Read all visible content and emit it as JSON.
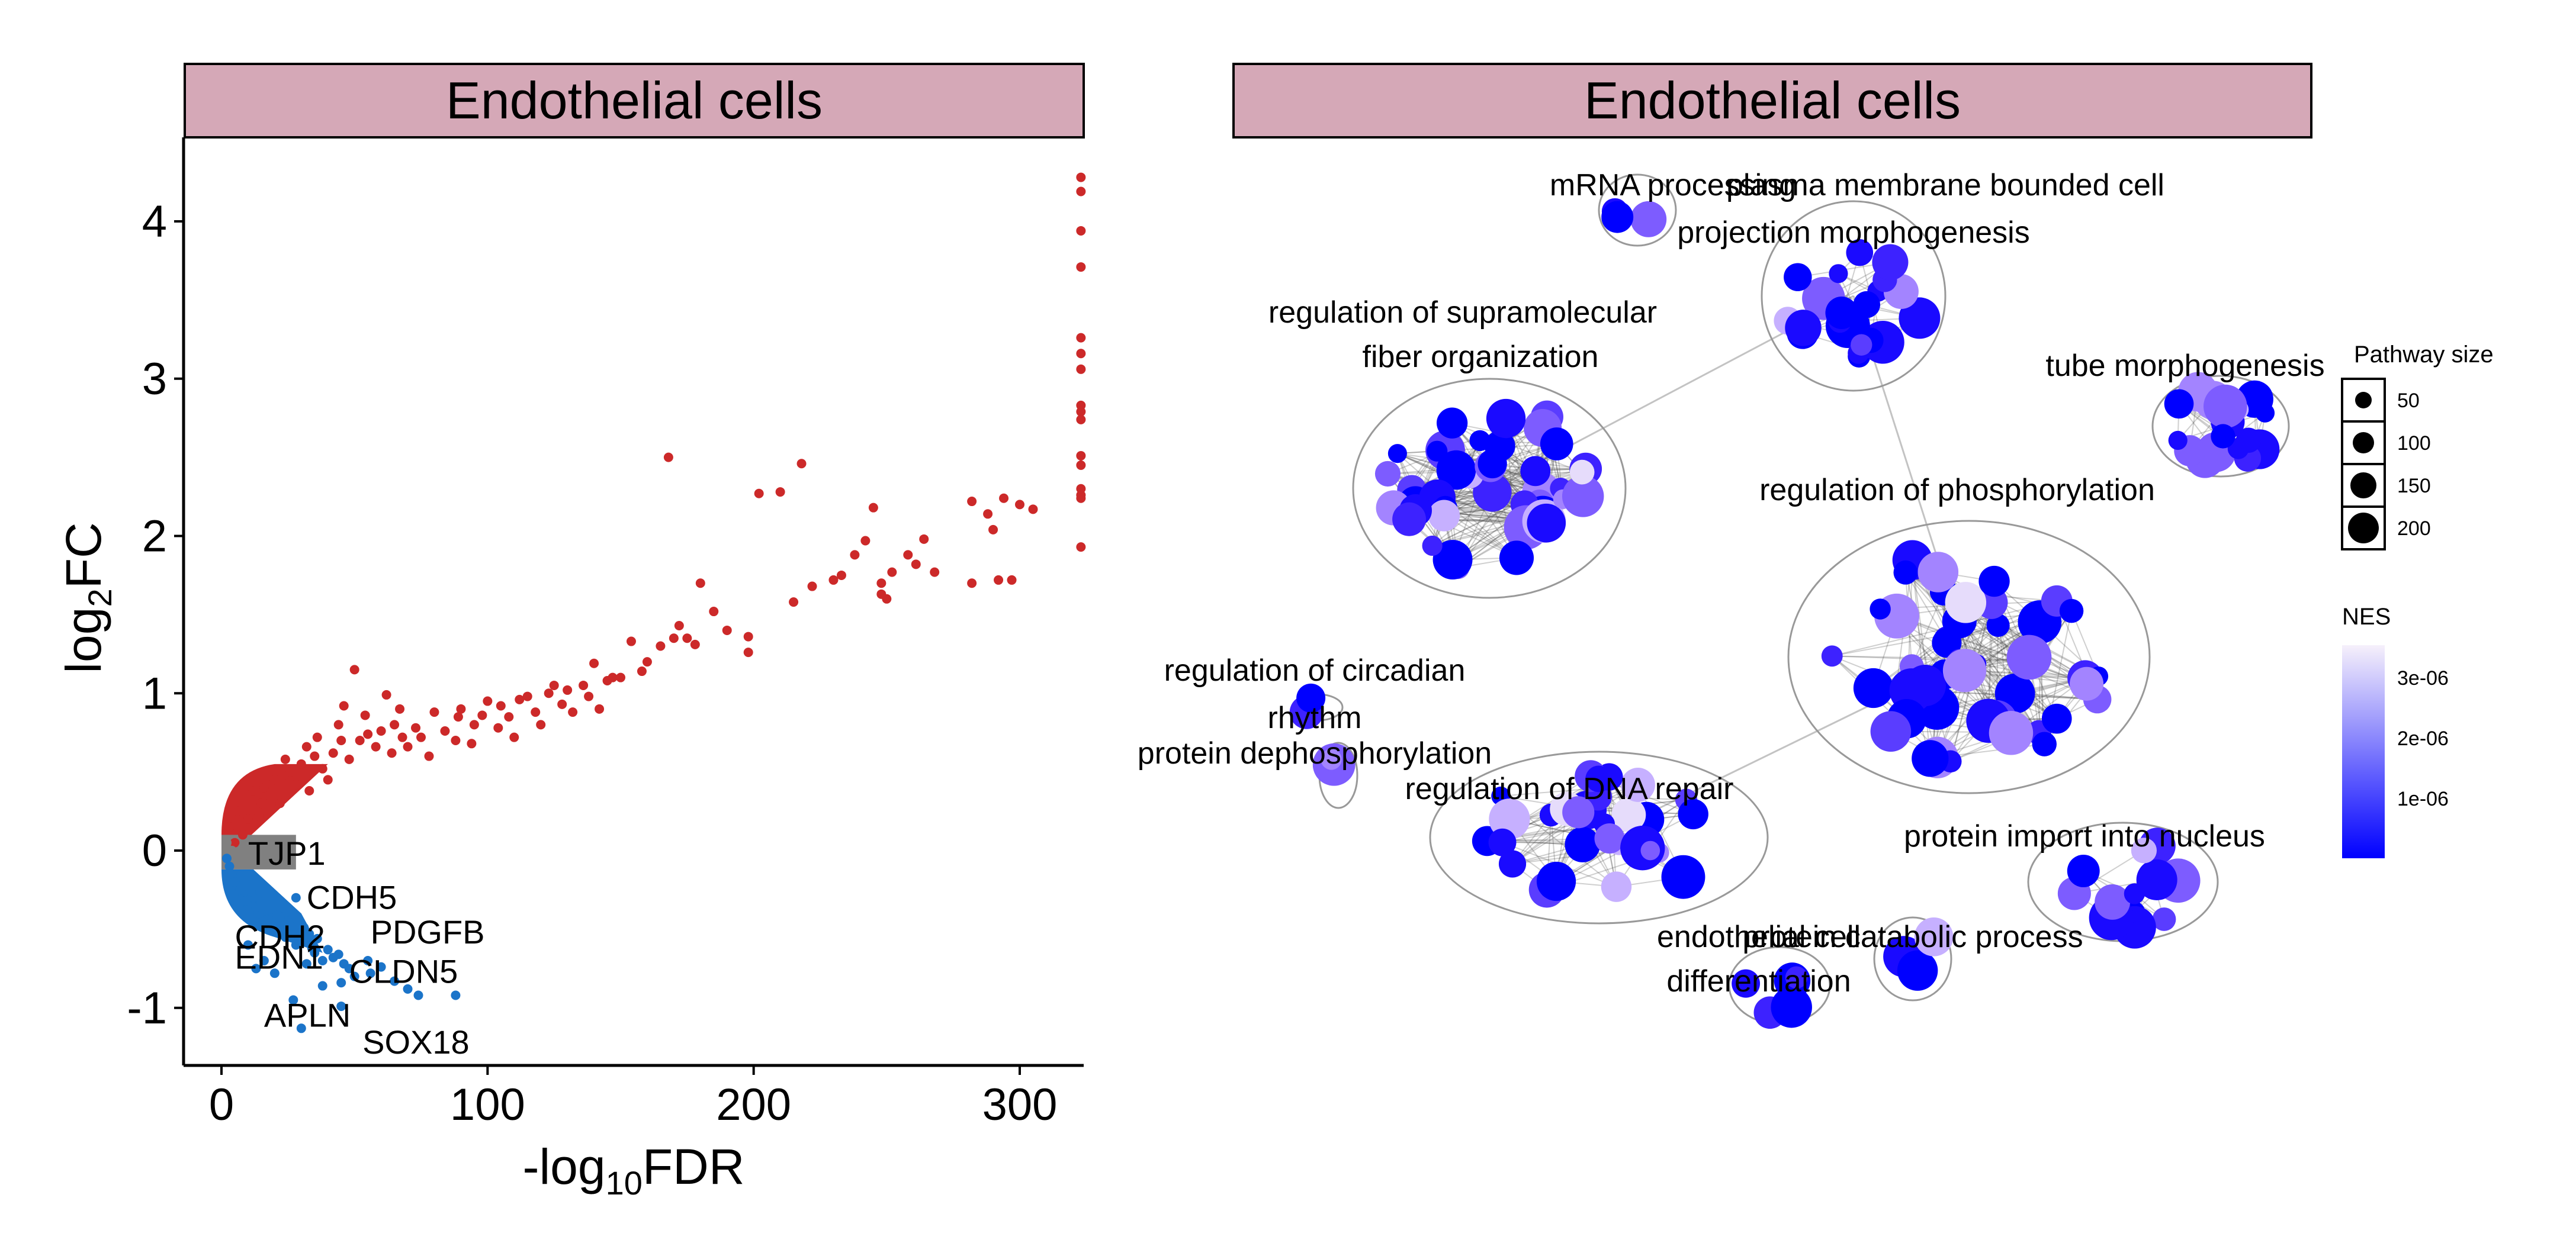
{
  "chart_data": [
    {
      "type": "scatter",
      "panel_title": "Endothelial cells",
      "xlabel": "-log10FDR",
      "xlabel_parts": {
        "prefix": "-log",
        "sub": "10",
        "suffix": "FDR"
      },
      "ylabel": "log2FC",
      "ylabel_parts": {
        "prefix": "log",
        "sub": "2",
        "suffix": "FC"
      },
      "xlim": [
        -12,
        323
      ],
      "ylim": [
        -1.37,
        4.52
      ],
      "xticks": [
        0,
        100,
        200,
        300
      ],
      "yticks": [
        -1,
        0,
        1,
        2,
        3,
        4
      ],
      "colors": {
        "up": "#cc2929",
        "down": "#1b74c9",
        "ns": "#808080"
      },
      "series": [
        {
          "name": "up",
          "points": [
            [
              323,
              4.28
            ],
            [
              323,
              4.19
            ],
            [
              323,
              3.94
            ],
            [
              323,
              3.71
            ],
            [
              323,
              3.26
            ],
            [
              323,
              3.16
            ],
            [
              323,
              3.06
            ],
            [
              323,
              2.83
            ],
            [
              323,
              2.79
            ],
            [
              323,
              2.74
            ],
            [
              323,
              2.51
            ],
            [
              323,
              2.45
            ],
            [
              323,
              2.3
            ],
            [
              323,
              2.26
            ],
            [
              323,
              2.24
            ],
            [
              323,
              1.93
            ],
            [
              168,
              2.5
            ],
            [
              218,
              2.46
            ],
            [
              210,
              2.28
            ],
            [
              202,
              2.27
            ],
            [
              282,
              2.22
            ],
            [
              300,
              2.2
            ],
            [
              294,
              2.24
            ],
            [
              288,
              2.14
            ],
            [
              305,
              2.17
            ],
            [
              245,
              2.18
            ],
            [
              290,
              2.04
            ],
            [
              242,
              1.97
            ],
            [
              238,
              1.88
            ],
            [
              264,
              1.98
            ],
            [
              292,
              1.72
            ],
            [
              282,
              1.7
            ],
            [
              297,
              1.72
            ],
            [
              230,
              1.72
            ],
            [
              261,
              1.82
            ],
            [
              258,
              1.88
            ],
            [
              248,
              1.63
            ],
            [
              250,
              1.6
            ],
            [
              268,
              1.77
            ],
            [
              248,
              1.7
            ],
            [
              252,
              1.77
            ],
            [
              180,
              1.7
            ],
            [
              215,
              1.58
            ],
            [
              233,
              1.75
            ],
            [
              222,
              1.68
            ],
            [
              178,
              1.31
            ],
            [
              185,
              1.52
            ],
            [
              198,
              1.36
            ],
            [
              198,
              1.26
            ],
            [
              172,
              1.43
            ],
            [
              170,
              1.35
            ],
            [
              165,
              1.3
            ],
            [
              154,
              1.33
            ],
            [
              140,
              1.19
            ],
            [
              123,
              1.0
            ],
            [
              158,
              1.14
            ],
            [
              147,
              1.1
            ],
            [
              136,
              1.05
            ],
            [
              112,
              0.96
            ],
            [
              100,
              0.95
            ],
            [
              98,
              0.86
            ],
            [
              89,
              0.85
            ],
            [
              73,
              0.78
            ],
            [
              60,
              0.76
            ],
            [
              52,
              0.7
            ],
            [
              42,
              0.62
            ],
            [
              30,
              0.55
            ],
            [
              20,
              0.45
            ],
            [
              12,
              0.38
            ],
            [
              6,
              0.25
            ],
            [
              3,
              0.15
            ],
            [
              15,
              0.3
            ],
            [
              25,
              0.48
            ],
            [
              35,
              0.6
            ],
            [
              45,
              0.7
            ],
            [
              55,
              0.74
            ],
            [
              65,
              0.8
            ],
            [
              80,
              0.88
            ],
            [
              90,
              0.9
            ],
            [
              105,
              0.92
            ],
            [
              115,
              0.98
            ],
            [
              125,
              1.05
            ],
            [
              130,
              1.02
            ],
            [
              145,
              1.08
            ],
            [
              160,
              1.2
            ],
            [
              175,
              1.35
            ],
            [
              190,
              1.4
            ],
            [
              10,
              0.2
            ],
            [
              18,
              0.35
            ],
            [
              28,
              0.42
            ],
            [
              38,
              0.52
            ],
            [
              48,
              0.58
            ],
            [
              58,
              0.66
            ],
            [
              68,
              0.72
            ],
            [
              78,
              0.6
            ],
            [
              88,
              0.7
            ],
            [
              95,
              0.8
            ],
            [
              108,
              0.85
            ],
            [
              118,
              0.88
            ],
            [
              128,
              0.93
            ],
            [
              138,
              0.98
            ],
            [
              150,
              1.1
            ],
            [
              46,
              0.92
            ],
            [
              50,
              1.15
            ],
            [
              62,
              0.99
            ],
            [
              26,
              0.5
            ],
            [
              33,
              0.38
            ],
            [
              40,
              0.45
            ],
            [
              22,
              0.3
            ],
            [
              8,
              0.1
            ],
            [
              5,
              0.05
            ],
            [
              14,
              0.22
            ],
            [
              16,
              0.4
            ],
            [
              24,
              0.58
            ],
            [
              32,
              0.66
            ],
            [
              36,
              0.72
            ],
            [
              44,
              0.8
            ],
            [
              54,
              0.86
            ],
            [
              64,
              0.62
            ],
            [
              70,
              0.66
            ],
            [
              84,
              0.76
            ],
            [
              94,
              0.68
            ],
            [
              104,
              0.78
            ],
            [
              110,
              0.72
            ],
            [
              120,
              0.8
            ],
            [
              132,
              0.88
            ],
            [
              142,
              0.9
            ],
            [
              75,
              0.72
            ],
            [
              67,
              0.9
            ]
          ]
        },
        {
          "name": "down",
          "points": [
            [
              2,
              -0.05
            ],
            [
              4,
              -0.15
            ],
            [
              6,
              -0.22
            ],
            [
              8,
              -0.28
            ],
            [
              10,
              -0.35
            ],
            [
              12,
              -0.3
            ],
            [
              14,
              -0.4
            ],
            [
              16,
              -0.45
            ],
            [
              18,
              -0.38
            ],
            [
              20,
              -0.5
            ],
            [
              22,
              -0.42
            ],
            [
              24,
              -0.55
            ],
            [
              26,
              -0.48
            ],
            [
              28,
              -0.6
            ],
            [
              30,
              -0.52
            ],
            [
              32,
              -0.58
            ],
            [
              34,
              -0.62
            ],
            [
              36,
              -0.56
            ],
            [
              3,
              -0.1
            ],
            [
              5,
              -0.2
            ],
            [
              7,
              -0.25
            ],
            [
              9,
              -0.32
            ],
            [
              11,
              -0.26
            ],
            [
              13,
              -0.36
            ],
            [
              15,
              -0.33
            ],
            [
              17,
              -0.44
            ],
            [
              19,
              -0.46
            ],
            [
              21,
              -0.41
            ],
            [
              23,
              -0.51
            ],
            [
              25,
              -0.45
            ],
            [
              27,
              -0.54
            ],
            [
              29,
              -0.57
            ],
            [
              31,
              -0.49
            ],
            [
              33,
              -0.53
            ],
            [
              28,
              -0.3
            ],
            [
              35,
              -0.65
            ],
            [
              38,
              -0.7
            ],
            [
              40,
              -0.63
            ],
            [
              42,
              -0.68
            ],
            [
              44,
              -0.66
            ],
            [
              46,
              -0.72
            ],
            [
              48,
              -0.75
            ],
            [
              50,
              -0.8
            ],
            [
              56,
              -0.78
            ],
            [
              60,
              -0.74
            ],
            [
              65,
              -0.83
            ],
            [
              70,
              -0.88
            ],
            [
              74,
              -0.92
            ],
            [
              88,
              -0.92
            ],
            [
              27,
              -0.95
            ],
            [
              16,
              -0.7
            ],
            [
              45,
              -0.99
            ],
            [
              45,
              -0.84
            ],
            [
              30,
              -1.13
            ],
            [
              55,
              -0.7
            ],
            [
              32,
              -0.72
            ],
            [
              10,
              -0.6
            ],
            [
              13,
              -0.75
            ],
            [
              20,
              -0.78
            ],
            [
              38,
              -0.86
            ]
          ]
        },
        {
          "name": "ns",
          "points": [
            [
              2,
              0.05
            ],
            [
              4,
              0.0
            ],
            [
              6,
              -0.05
            ],
            [
              8,
              0.02
            ],
            [
              10,
              -0.03
            ],
            [
              12,
              0.06
            ],
            [
              14,
              0.0
            ],
            [
              16,
              -0.06
            ],
            [
              18,
              0.03
            ],
            [
              20,
              -0.02
            ]
          ]
        }
      ],
      "annotations": [
        {
          "label": "TJP1",
          "x": 10,
          "y": 0.0
        },
        {
          "label": "CDH5",
          "x": 32,
          "y": -0.28
        },
        {
          "label": "PDGFB",
          "x": 56,
          "y": -0.5
        },
        {
          "label": "CDH2",
          "x": 5,
          "y": -0.53
        },
        {
          "label": "EDN1",
          "x": 5,
          "y": -0.66
        },
        {
          "label": "CLDN5",
          "x": 48,
          "y": -0.75
        },
        {
          "label": "APLN",
          "x": 16,
          "y": -1.03
        },
        {
          "label": "SOX18",
          "x": 53,
          "y": -1.2
        }
      ]
    },
    {
      "type": "network",
      "panel_title": "Endothelial cells",
      "clusters": [
        {
          "label": [
            "mRNA processing"
          ],
          "nodes": 3
        },
        {
          "label": [
            "plasma membrane bounded cell",
            "projection morphogenesis"
          ],
          "nodes": 22
        },
        {
          "label": [
            "regulation of supramolecular",
            "fiber organization"
          ],
          "nodes": 45
        },
        {
          "label": [
            "tube morphogenesis"
          ],
          "nodes": 18
        },
        {
          "label": [
            "regulation of phosphorylation"
          ],
          "nodes": 45
        },
        {
          "label": [
            "regulation of circadian",
            "rhythm"
          ],
          "nodes": 2
        },
        {
          "label": [
            "protein dephosphorylation"
          ],
          "nodes": 2
        },
        {
          "label": [
            "regulation of DNA repair"
          ],
          "nodes": 30
        },
        {
          "label": [
            "protein import into nucleus"
          ],
          "nodes": 13
        },
        {
          "label": [
            "endothelial cell",
            "differentiation"
          ],
          "nodes": 5
        },
        {
          "label": [
            "protein catabolic process"
          ],
          "nodes": 3
        }
      ],
      "legend": {
        "size_title": "Pathway size",
        "size_values": [
          50,
          100,
          150,
          200
        ],
        "color_title": "NES",
        "color_ticks": [
          "3e-06",
          "2e-06",
          "1e-06"
        ],
        "color_range": [
          "#0000ff",
          "#f6f0fb"
        ]
      }
    }
  ]
}
